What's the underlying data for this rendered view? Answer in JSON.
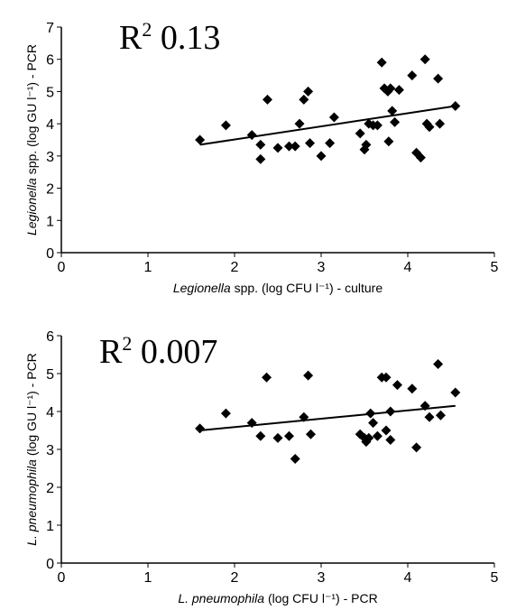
{
  "charts": [
    {
      "type": "scatter",
      "annotation": {
        "base": "R",
        "sup": "2",
        "value": "0.13"
      },
      "xlabel": {
        "italic": "Legionella",
        "rest": " spp. (log CFU l⁻¹) - culture"
      },
      "ylabel": {
        "italic": "Legionella",
        "rest": " spp. (log GU l⁻¹) - PCR"
      },
      "xlim": [
        0,
        5
      ],
      "ylim": [
        0,
        7
      ],
      "xticks": [
        "0",
        "1",
        "2",
        "3",
        "4",
        "5"
      ],
      "yticks": [
        "0",
        "1",
        "2",
        "3",
        "4",
        "5",
        "6",
        "7"
      ],
      "points": [
        [
          1.6,
          3.5
        ],
        [
          1.9,
          3.95
        ],
        [
          2.2,
          3.65
        ],
        [
          2.3,
          3.35
        ],
        [
          2.3,
          2.9
        ],
        [
          2.38,
          4.75
        ],
        [
          2.5,
          3.25
        ],
        [
          2.63,
          3.3
        ],
        [
          2.7,
          3.3
        ],
        [
          2.75,
          4.0
        ],
        [
          2.8,
          4.75
        ],
        [
          2.85,
          5.0
        ],
        [
          2.87,
          3.4
        ],
        [
          3.0,
          3.0
        ],
        [
          3.1,
          3.4
        ],
        [
          3.15,
          4.2
        ],
        [
          3.45,
          3.7
        ],
        [
          3.5,
          3.2
        ],
        [
          3.52,
          3.35
        ],
        [
          3.55,
          4.0
        ],
        [
          3.6,
          3.95
        ],
        [
          3.65,
          3.95
        ],
        [
          3.7,
          5.9
        ],
        [
          3.73,
          5.1
        ],
        [
          3.77,
          5.0
        ],
        [
          3.8,
          5.1
        ],
        [
          3.78,
          3.45
        ],
        [
          3.82,
          4.4
        ],
        [
          3.85,
          4.05
        ],
        [
          3.9,
          5.05
        ],
        [
          4.05,
          5.5
        ],
        [
          4.1,
          3.1
        ],
        [
          4.15,
          2.95
        ],
        [
          4.2,
          6.0
        ],
        [
          4.22,
          4.0
        ],
        [
          4.25,
          3.9
        ],
        [
          4.35,
          5.4
        ],
        [
          4.37,
          4.0
        ],
        [
          4.55,
          4.55
        ]
      ],
      "trend": {
        "x": [
          1.6,
          4.55
        ],
        "y": [
          3.35,
          4.55
        ]
      }
    },
    {
      "type": "scatter",
      "annotation": {
        "base": "R",
        "sup": "2",
        "value": "0.007"
      },
      "xlabel": {
        "italic": "L. pneumophila",
        "rest": " (log CFU l⁻¹) - PCR"
      },
      "ylabel": {
        "italic": "L. pneumophila",
        "rest": " (log GU l⁻¹) - PCR"
      },
      "xlim": [
        0,
        5
      ],
      "ylim": [
        0,
        6
      ],
      "xticks": [
        "0",
        "1",
        "2",
        "3",
        "4",
        "5"
      ],
      "yticks": [
        "0",
        "1",
        "2",
        "3",
        "4",
        "5",
        "6"
      ],
      "points": [
        [
          1.6,
          3.55
        ],
        [
          1.9,
          3.95
        ],
        [
          2.2,
          3.7
        ],
        [
          2.3,
          3.35
        ],
        [
          2.37,
          4.9
        ],
        [
          2.5,
          3.3
        ],
        [
          2.63,
          3.35
        ],
        [
          2.7,
          2.75
        ],
        [
          2.8,
          3.85
        ],
        [
          2.85,
          4.95
        ],
        [
          2.88,
          3.4
        ],
        [
          3.45,
          3.4
        ],
        [
          3.5,
          3.3
        ],
        [
          3.52,
          3.2
        ],
        [
          3.55,
          3.3
        ],
        [
          3.57,
          3.95
        ],
        [
          3.6,
          3.7
        ],
        [
          3.65,
          3.35
        ],
        [
          3.7,
          4.9
        ],
        [
          3.75,
          4.9
        ],
        [
          3.75,
          3.5
        ],
        [
          3.8,
          3.25
        ],
        [
          3.8,
          4.0
        ],
        [
          3.88,
          4.7
        ],
        [
          4.05,
          4.6
        ],
        [
          4.1,
          3.05
        ],
        [
          4.2,
          4.15
        ],
        [
          4.25,
          3.85
        ],
        [
          4.35,
          5.25
        ],
        [
          4.38,
          3.9
        ],
        [
          4.55,
          4.5
        ]
      ],
      "trend": {
        "x": [
          1.6,
          4.55
        ],
        "y": [
          3.5,
          4.15
        ]
      }
    }
  ]
}
